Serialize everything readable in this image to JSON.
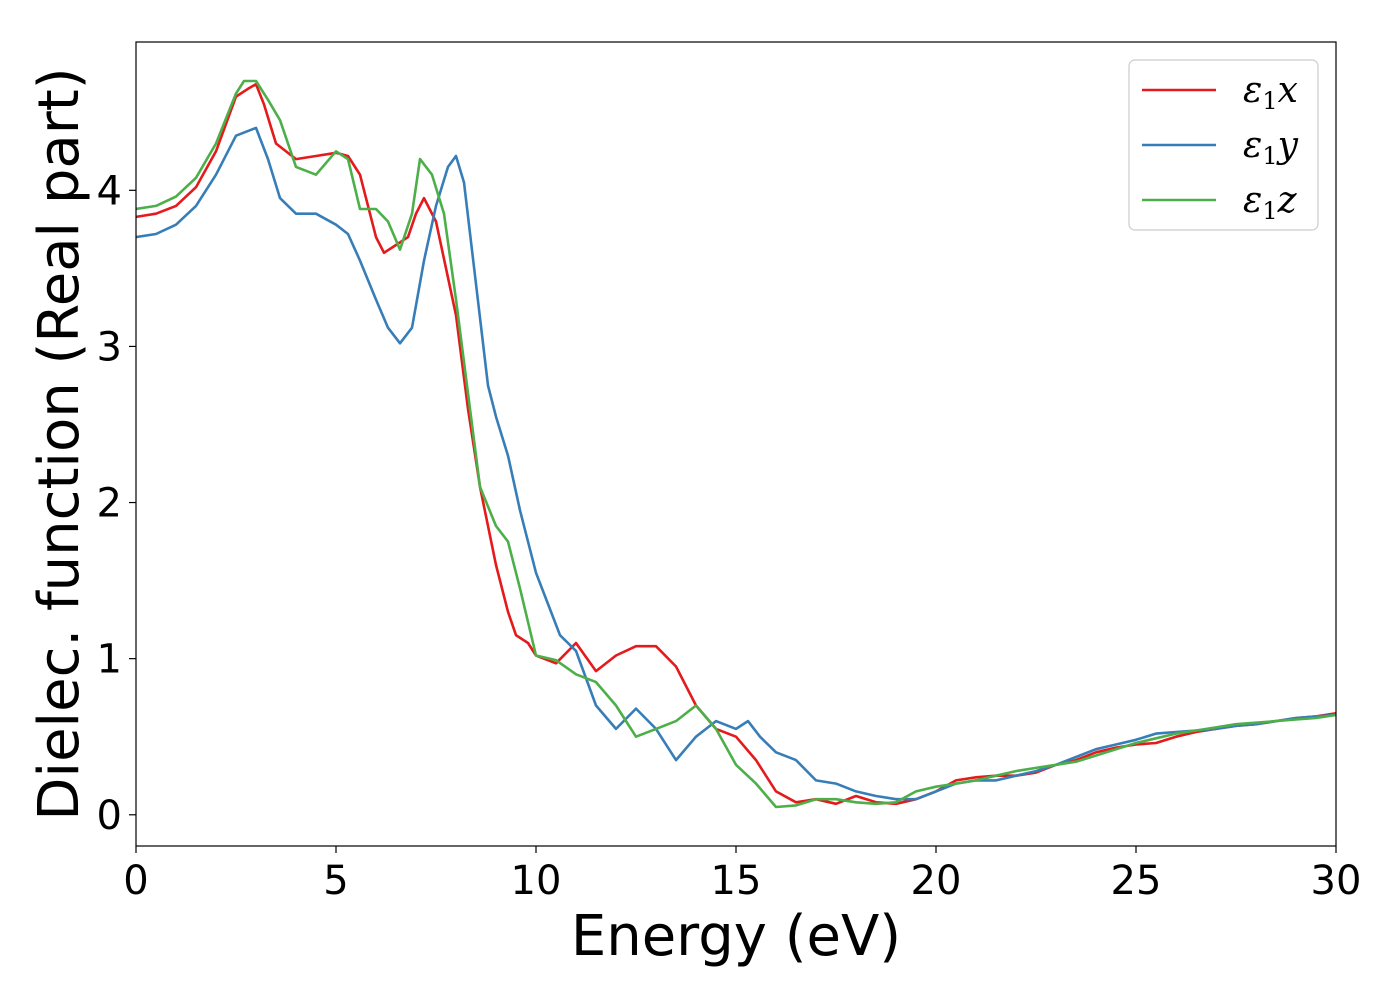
{
  "chart_data": {
    "type": "line",
    "xlabel": "Energy (eV)",
    "ylabel": "Dielec. function (Real part)",
    "xlim": [
      0,
      30
    ],
    "ylim": [
      -0.2,
      4.95
    ],
    "xticks": [
      0,
      5,
      10,
      15,
      20,
      25,
      30
    ],
    "yticks": [
      0,
      1,
      2,
      3,
      4
    ],
    "grid": false,
    "legend_position": "top-right",
    "series": [
      {
        "name": "ε1x",
        "color": "#e41a1c",
        "points": [
          [
            0,
            3.83
          ],
          [
            0.5,
            3.85
          ],
          [
            1,
            3.9
          ],
          [
            1.5,
            4.02
          ],
          [
            2,
            4.25
          ],
          [
            2.5,
            4.6
          ],
          [
            2.8,
            4.65
          ],
          [
            3.0,
            4.68
          ],
          [
            3.2,
            4.55
          ],
          [
            3.5,
            4.3
          ],
          [
            4,
            4.2
          ],
          [
            4.5,
            4.22
          ],
          [
            5,
            4.24
          ],
          [
            5.3,
            4.22
          ],
          [
            5.6,
            4.1
          ],
          [
            6,
            3.7
          ],
          [
            6.2,
            3.6
          ],
          [
            6.5,
            3.65
          ],
          [
            6.8,
            3.7
          ],
          [
            7.0,
            3.85
          ],
          [
            7.2,
            3.95
          ],
          [
            7.5,
            3.8
          ],
          [
            8,
            3.2
          ],
          [
            8.3,
            2.6
          ],
          [
            8.6,
            2.1
          ],
          [
            9,
            1.6
          ],
          [
            9.3,
            1.3
          ],
          [
            9.5,
            1.15
          ],
          [
            9.8,
            1.1
          ],
          [
            10,
            1.02
          ],
          [
            10.5,
            0.97
          ],
          [
            11,
            1.1
          ],
          [
            11.5,
            0.92
          ],
          [
            12,
            1.02
          ],
          [
            12.5,
            1.08
          ],
          [
            13,
            1.08
          ],
          [
            13.5,
            0.95
          ],
          [
            14,
            0.7
          ],
          [
            14.5,
            0.55
          ],
          [
            15,
            0.5
          ],
          [
            15.5,
            0.35
          ],
          [
            16,
            0.15
          ],
          [
            16.5,
            0.08
          ],
          [
            17,
            0.1
          ],
          [
            17.5,
            0.07
          ],
          [
            18,
            0.12
          ],
          [
            18.5,
            0.08
          ],
          [
            19,
            0.07
          ],
          [
            19.5,
            0.1
          ],
          [
            20,
            0.15
          ],
          [
            20.5,
            0.22
          ],
          [
            21,
            0.24
          ],
          [
            21.5,
            0.25
          ],
          [
            22,
            0.25
          ],
          [
            22.5,
            0.27
          ],
          [
            23,
            0.32
          ],
          [
            23.5,
            0.35
          ],
          [
            24,
            0.4
          ],
          [
            24.5,
            0.43
          ],
          [
            25,
            0.45
          ],
          [
            25.5,
            0.46
          ],
          [
            26,
            0.5
          ],
          [
            26.5,
            0.53
          ],
          [
            27,
            0.55
          ],
          [
            27.5,
            0.57
          ],
          [
            28,
            0.58
          ],
          [
            28.5,
            0.6
          ],
          [
            29,
            0.62
          ],
          [
            29.5,
            0.63
          ],
          [
            30,
            0.65
          ]
        ]
      },
      {
        "name": "ε1y",
        "color": "#377eb8",
        "points": [
          [
            0,
            3.7
          ],
          [
            0.5,
            3.72
          ],
          [
            1,
            3.78
          ],
          [
            1.5,
            3.9
          ],
          [
            2,
            4.1
          ],
          [
            2.5,
            4.35
          ],
          [
            3.0,
            4.4
          ],
          [
            3.3,
            4.2
          ],
          [
            3.6,
            3.95
          ],
          [
            4,
            3.85
          ],
          [
            4.5,
            3.85
          ],
          [
            5,
            3.78
          ],
          [
            5.3,
            3.72
          ],
          [
            5.6,
            3.55
          ],
          [
            6,
            3.3
          ],
          [
            6.3,
            3.12
          ],
          [
            6.6,
            3.02
          ],
          [
            6.9,
            3.12
          ],
          [
            7.2,
            3.55
          ],
          [
            7.5,
            3.9
          ],
          [
            7.8,
            4.15
          ],
          [
            8.0,
            4.22
          ],
          [
            8.2,
            4.05
          ],
          [
            8.5,
            3.4
          ],
          [
            8.8,
            2.75
          ],
          [
            9,
            2.55
          ],
          [
            9.3,
            2.3
          ],
          [
            9.6,
            1.95
          ],
          [
            10,
            1.55
          ],
          [
            10.3,
            1.35
          ],
          [
            10.6,
            1.15
          ],
          [
            11,
            1.05
          ],
          [
            11.5,
            0.7
          ],
          [
            12,
            0.55
          ],
          [
            12.5,
            0.68
          ],
          [
            13,
            0.55
          ],
          [
            13.5,
            0.35
          ],
          [
            14,
            0.5
          ],
          [
            14.5,
            0.6
          ],
          [
            15,
            0.55
          ],
          [
            15.3,
            0.6
          ],
          [
            15.6,
            0.5
          ],
          [
            16,
            0.4
          ],
          [
            16.5,
            0.35
          ],
          [
            17,
            0.22
          ],
          [
            17.5,
            0.2
          ],
          [
            18,
            0.15
          ],
          [
            18.5,
            0.12
          ],
          [
            19,
            0.1
          ],
          [
            19.5,
            0.1
          ],
          [
            20,
            0.15
          ],
          [
            20.5,
            0.2
          ],
          [
            21,
            0.22
          ],
          [
            21.5,
            0.22
          ],
          [
            22,
            0.25
          ],
          [
            22.5,
            0.28
          ],
          [
            23,
            0.32
          ],
          [
            23.5,
            0.37
          ],
          [
            24,
            0.42
          ],
          [
            24.5,
            0.45
          ],
          [
            25,
            0.48
          ],
          [
            25.5,
            0.52
          ],
          [
            26,
            0.53
          ],
          [
            26.5,
            0.54
          ],
          [
            27,
            0.55
          ],
          [
            27.5,
            0.57
          ],
          [
            28,
            0.58
          ],
          [
            28.5,
            0.6
          ],
          [
            29,
            0.62
          ],
          [
            29.5,
            0.63
          ],
          [
            30,
            0.64
          ]
        ]
      },
      {
        "name": "ε1z",
        "color": "#4daf4a",
        "points": [
          [
            0,
            3.88
          ],
          [
            0.5,
            3.9
          ],
          [
            1,
            3.96
          ],
          [
            1.5,
            4.08
          ],
          [
            2,
            4.3
          ],
          [
            2.5,
            4.62
          ],
          [
            2.7,
            4.7
          ],
          [
            3.0,
            4.7
          ],
          [
            3.3,
            4.58
          ],
          [
            3.6,
            4.45
          ],
          [
            4,
            4.15
          ],
          [
            4.5,
            4.1
          ],
          [
            5,
            4.25
          ],
          [
            5.3,
            4.2
          ],
          [
            5.6,
            3.88
          ],
          [
            6,
            3.88
          ],
          [
            6.3,
            3.8
          ],
          [
            6.6,
            3.62
          ],
          [
            6.9,
            3.85
          ],
          [
            7.1,
            4.2
          ],
          [
            7.4,
            4.1
          ],
          [
            7.7,
            3.85
          ],
          [
            8,
            3.3
          ],
          [
            8.3,
            2.7
          ],
          [
            8.6,
            2.1
          ],
          [
            9,
            1.85
          ],
          [
            9.3,
            1.75
          ],
          [
            9.6,
            1.45
          ],
          [
            10,
            1.02
          ],
          [
            10.5,
            0.99
          ],
          [
            11,
            0.9
          ],
          [
            11.5,
            0.85
          ],
          [
            12,
            0.7
          ],
          [
            12.5,
            0.5
          ],
          [
            13,
            0.55
          ],
          [
            13.5,
            0.6
          ],
          [
            14,
            0.7
          ],
          [
            14.5,
            0.55
          ],
          [
            15,
            0.32
          ],
          [
            15.5,
            0.2
          ],
          [
            16,
            0.05
          ],
          [
            16.5,
            0.06
          ],
          [
            17,
            0.1
          ],
          [
            17.5,
            0.1
          ],
          [
            18,
            0.08
          ],
          [
            18.5,
            0.07
          ],
          [
            19,
            0.08
          ],
          [
            19.5,
            0.15
          ],
          [
            20,
            0.18
          ],
          [
            20.5,
            0.2
          ],
          [
            21,
            0.22
          ],
          [
            21.5,
            0.25
          ],
          [
            22,
            0.28
          ],
          [
            22.5,
            0.3
          ],
          [
            23,
            0.32
          ],
          [
            23.5,
            0.34
          ],
          [
            24,
            0.38
          ],
          [
            24.5,
            0.42
          ],
          [
            25,
            0.46
          ],
          [
            25.5,
            0.49
          ],
          [
            26,
            0.52
          ],
          [
            26.5,
            0.54
          ],
          [
            27,
            0.56
          ],
          [
            27.5,
            0.58
          ],
          [
            28,
            0.59
          ],
          [
            28.5,
            0.6
          ],
          [
            29,
            0.61
          ],
          [
            29.5,
            0.62
          ],
          [
            30,
            0.64
          ]
        ]
      }
    ]
  }
}
